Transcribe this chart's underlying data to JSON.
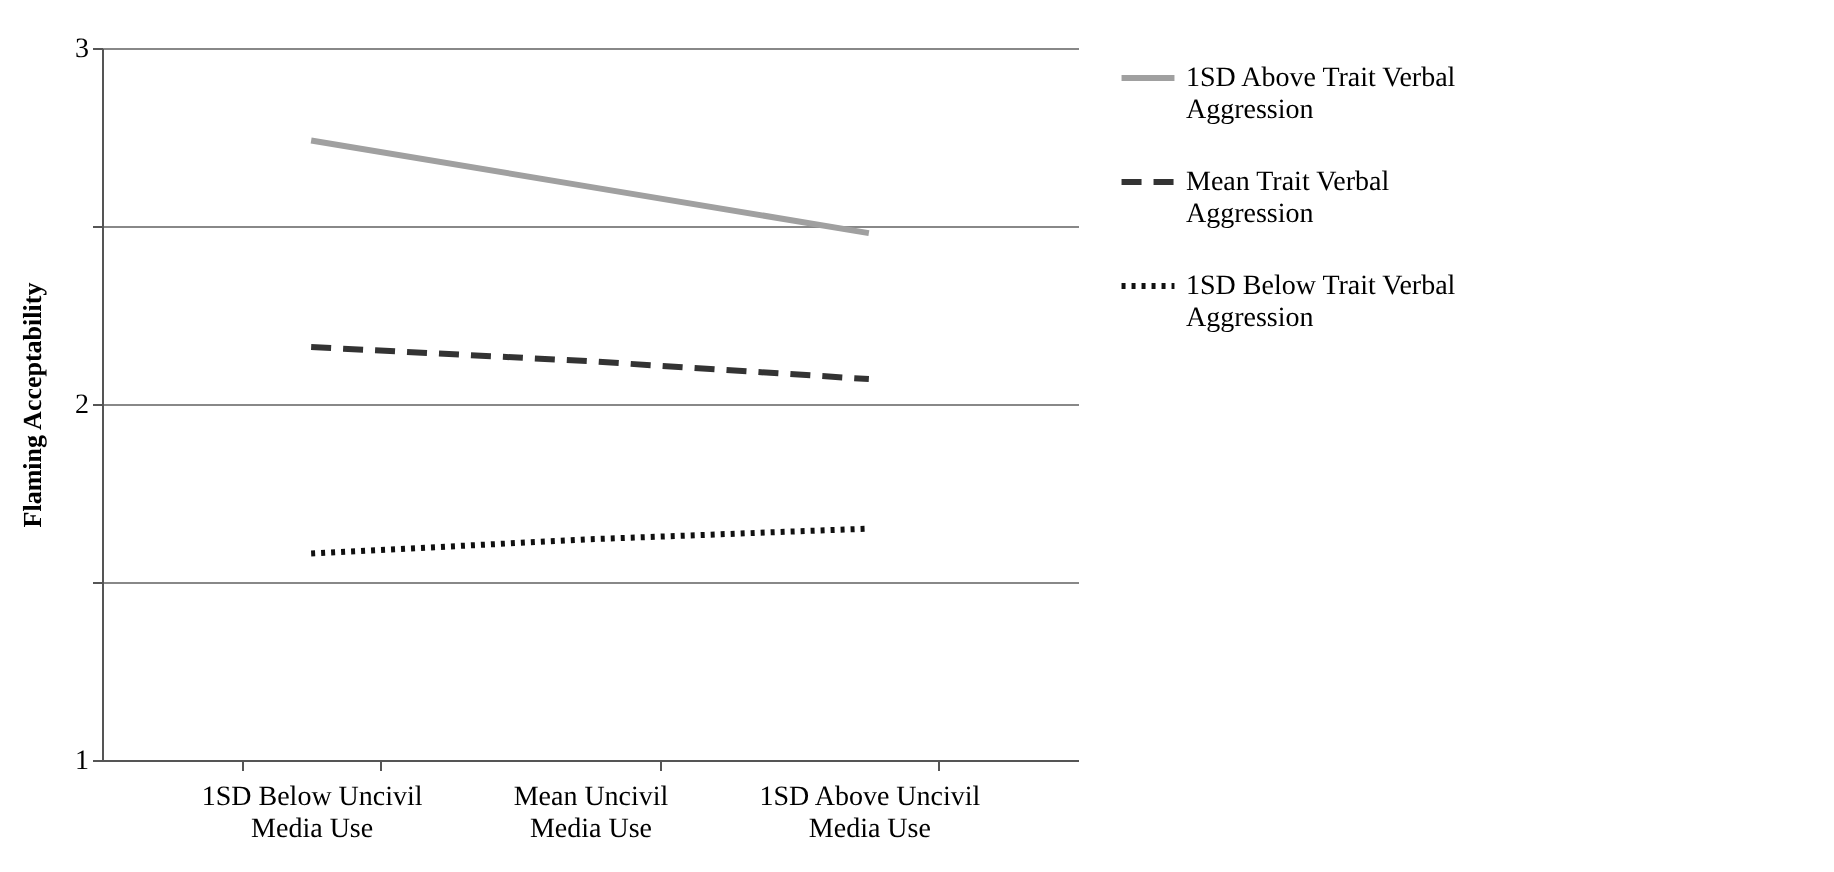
{
  "chart_data": {
    "type": "line",
    "ylabel": "Flaming Acceptability",
    "categories": [
      "1SD Below Uncivil Media Use",
      "Mean Uncivil Media Use",
      "1SD Above Uncivil Media Use"
    ],
    "series": [
      {
        "name": "1SD Above Trait Verbal Aggression",
        "color": "#a0a0a0",
        "line_style": "solid",
        "values": [
          2.74,
          2.61,
          2.48
        ]
      },
      {
        "name": "Mean Trait Verbal Aggression",
        "color": "#333333",
        "line_style": "dashed",
        "values": [
          2.16,
          2.12,
          2.07
        ]
      },
      {
        "name": "1SD Below Trait Verbal Aggression",
        "color": "#111111",
        "line_style": "dotted",
        "values": [
          1.58,
          1.62,
          1.65
        ]
      }
    ],
    "ylim": [
      1,
      3
    ],
    "yticks": [
      1,
      {
        "value": 1.5,
        "label": null
      },
      2,
      {
        "value": 2.5,
        "label": null
      },
      3
    ],
    "grid": "y",
    "legend": "right",
    "marker": "none"
  }
}
